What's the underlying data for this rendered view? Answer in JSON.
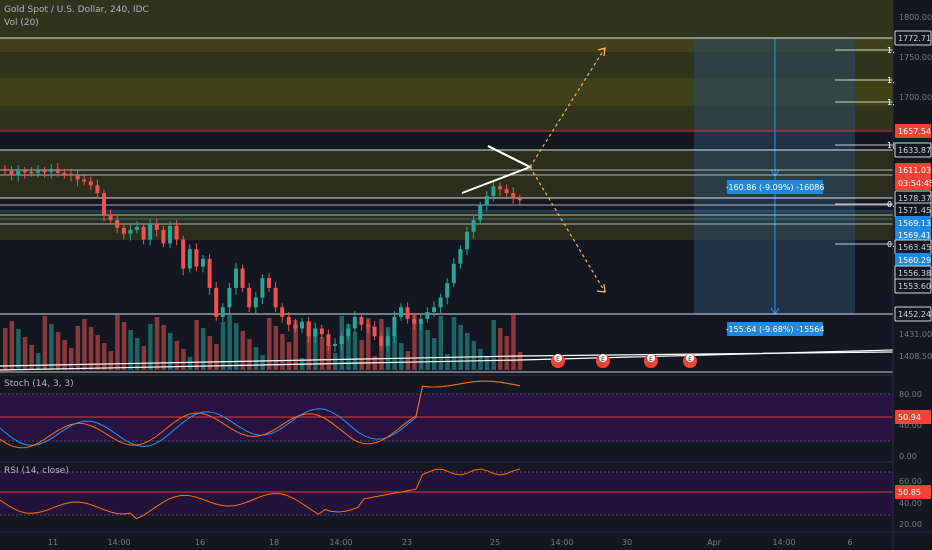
{
  "header": {
    "symbol_line": "Gold Spot / U.S. Dollar, 240, IDC",
    "volume_label": "Vol (20)"
  },
  "colors": {
    "background": "#131722",
    "bull": "#26a69a",
    "bear": "#ef5350",
    "zone_yellow": "#6b6b10",
    "zone_blue": "#2b4a66",
    "resistance_red": "#e53935",
    "stoch_fill": "#2a1245",
    "stoch_k": "#2196f3",
    "stoch_d": "#ff6d00",
    "rsi_line": "#ff6d00",
    "badge_blue": "#1e88e5",
    "badge_red": "#f44336"
  },
  "main_axis": {
    "ticks": [
      "1800.00",
      "1750.00",
      "1700.00",
      "1431.00",
      "1408.50"
    ],
    "price_badges": [
      {
        "text": "1772.71",
        "kind": "white"
      },
      {
        "text": "1657.54",
        "kind": "red"
      },
      {
        "text": "1633.87",
        "kind": "white"
      },
      {
        "text": "1611.03",
        "kind": "red"
      },
      {
        "text": "03:54:45",
        "kind": "red"
      },
      {
        "text": "1578.37",
        "kind": "white"
      },
      {
        "text": "1571.45",
        "kind": "white"
      },
      {
        "text": "1569.13",
        "kind": "blue"
      },
      {
        "text": "1569.41",
        "kind": "blue"
      },
      {
        "text": "1563.45",
        "kind": "white"
      },
      {
        "text": "1560.29",
        "kind": "blue"
      },
      {
        "text": "1556.38",
        "kind": "white"
      },
      {
        "text": "1553.60",
        "kind": "white"
      },
      {
        "text": "1452.24",
        "kind": "white"
      }
    ],
    "fib_labels": [
      "1.",
      "1.",
      "1.",
      "1(",
      "0.",
      "0."
    ]
  },
  "measure_labels": {
    "upper": "-160.86 (-9.09%) -16086",
    "lower": "-155.64 (-9.68%) -15564"
  },
  "event_markers": [
    "E",
    "E",
    "E",
    "E"
  ],
  "stoch": {
    "label": "Stoch (14, 3, 3)",
    "ticks": [
      "80.00",
      "40.00",
      "0.00"
    ],
    "value": "50.94"
  },
  "rsi": {
    "label": "RSI (14, close)",
    "ticks": [
      "60.00",
      "40.00",
      "20.00"
    ],
    "value": "50.85"
  },
  "x_axis": {
    "labels": [
      "11",
      "14:00",
      "16",
      "18",
      "14:00",
      "23",
      "25",
      "14:00",
      "30",
      "Apr",
      "14:00",
      "6"
    ]
  },
  "chart_data": {
    "type": "candlestick",
    "title": "Gold Spot / U.S. Dollar, 240, IDC",
    "candles_close_approx": [
      1641,
      1636,
      1641,
      1640,
      1639,
      1641,
      1640,
      1643,
      1639,
      1638,
      1636,
      1632,
      1630,
      1626,
      1618,
      1596,
      1590,
      1582,
      1576,
      1580,
      1583,
      1570,
      1586,
      1580,
      1566,
      1584,
      1570,
      1540,
      1560,
      1542,
      1550,
      1520,
      1490,
      1500,
      1520,
      1540,
      1520,
      1500,
      1510,
      1530,
      1520,
      1500,
      1490,
      1482,
      1478,
      1485,
      1470,
      1478,
      1472,
      1460,
      1462,
      1470,
      1478,
      1490,
      1482,
      1480,
      1470,
      1460,
      1470,
      1490,
      1500,
      1488,
      1483,
      1488,
      1495,
      1500,
      1510,
      1525,
      1545,
      1560,
      1578,
      1590,
      1605,
      1615,
      1625,
      1622,
      1618,
      1612,
      1611
    ],
    "volume_label": "Vol (20)",
    "stoch_label": "Stoch (14, 3, 3)",
    "rsi_label": "RSI (14, close)"
  }
}
